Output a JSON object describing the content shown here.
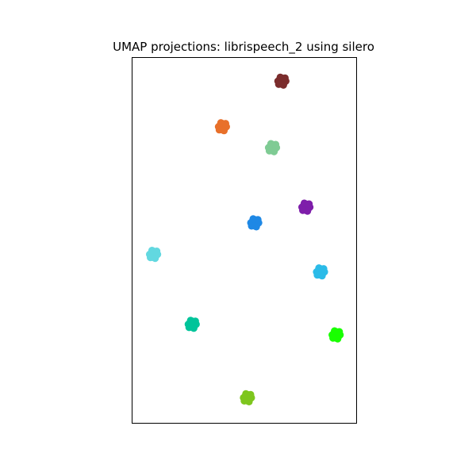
{
  "chart_data": {
    "type": "scatter",
    "title": "UMAP projections: librispeech_2 using silero",
    "xlabel": "",
    "ylabel": "",
    "xlim": [
      0,
      100
    ],
    "ylim": [
      0,
      100
    ],
    "grid": false,
    "axis_ticks": false,
    "series": [
      {
        "color": "#7b2d2d",
        "points": [
          [
            68.0,
            95.5
          ]
        ]
      },
      {
        "color": "#e8702a",
        "points": [
          [
            39.5,
            82.5
          ]
        ]
      },
      {
        "color": "#7fcb94",
        "points": [
          [
            63.5,
            76.5
          ]
        ]
      },
      {
        "color": "#7e1eaa",
        "points": [
          [
            79.5,
            59.5
          ]
        ]
      },
      {
        "color": "#1e88e5",
        "points": [
          [
            55.0,
            55.0
          ]
        ]
      },
      {
        "color": "#62d8e0",
        "points": [
          [
            6.5,
            46.0
          ]
        ]
      },
      {
        "color": "#2bbbe8",
        "points": [
          [
            86.5,
            41.0
          ]
        ]
      },
      {
        "color": "#00c49a",
        "points": [
          [
            25.0,
            26.0
          ]
        ]
      },
      {
        "color": "#19ff00",
        "points": [
          [
            94.0,
            23.0
          ]
        ]
      },
      {
        "color": "#7ec61e",
        "points": [
          [
            51.5,
            5.0
          ]
        ]
      }
    ]
  }
}
